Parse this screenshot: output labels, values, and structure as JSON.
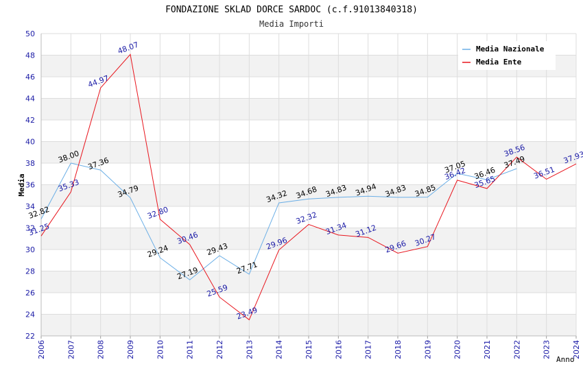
{
  "chart_data": {
    "type": "line",
    "title": "FONDAZIONE SKLAD DORCE SARDOC (c.f.91013840318)",
    "subtitle": "Media Importi",
    "ylabel": "Media",
    "xlabel": "Anno",
    "ylim": [
      22,
      50
    ],
    "yticks": [
      "22",
      "24",
      "26",
      "28",
      "30",
      "32",
      "34",
      "36",
      "38",
      "40",
      "42",
      "44",
      "46",
      "48",
      "50"
    ],
    "categories": [
      "2006",
      "2007",
      "2008",
      "2009",
      "2010",
      "2011",
      "2012",
      "2013",
      "2014",
      "2015",
      "2016",
      "2017",
      "2018",
      "2019",
      "2020",
      "2021",
      "2022",
      "2023",
      "2024"
    ],
    "grid": true,
    "legend_position": "top-right",
    "series": [
      {
        "name": "Media Nazionale",
        "color": "#6aaee6",
        "label_color": "#000000",
        "values": [
          32.82,
          38.0,
          37.36,
          34.79,
          29.24,
          27.19,
          29.43,
          27.71,
          34.32,
          34.68,
          34.83,
          34.94,
          34.83,
          34.85,
          37.05,
          36.46,
          37.49,
          null,
          null
        ],
        "labels": [
          "32.82",
          "38.00",
          "37.36",
          "34.79",
          "29.24",
          "27.19",
          "29.43",
          "27.71",
          "34.32",
          "34.68",
          "34.83",
          "34.94",
          "34.83",
          "34.85",
          "37.05",
          "36.46",
          "37.49",
          null,
          null
        ]
      },
      {
        "name": "Media Ente",
        "color": "#e8141c",
        "label_color": "#1a1aa6",
        "values": [
          31.25,
          35.33,
          44.97,
          48.07,
          32.8,
          30.46,
          25.59,
          23.49,
          29.96,
          32.32,
          31.34,
          31.12,
          29.66,
          30.27,
          36.42,
          35.65,
          38.56,
          36.51,
          37.93
        ],
        "labels": [
          "31.25",
          "35.33",
          "44.97",
          "48.07",
          "32.80",
          "30.46",
          "25.59",
          "23.49",
          "29.96",
          "32.32",
          "31.34",
          "31.12",
          "29.66",
          "30.27",
          "36.42",
          "35.65",
          "38.56",
          "36.51",
          "37.93"
        ]
      }
    ]
  },
  "colors": {
    "axis_tick_text": "#1a1aa6",
    "band_fill": "#f2f2f2",
    "grid_line": "#dddddd",
    "title_text": "#000000",
    "subtitle_text": "#333333"
  }
}
